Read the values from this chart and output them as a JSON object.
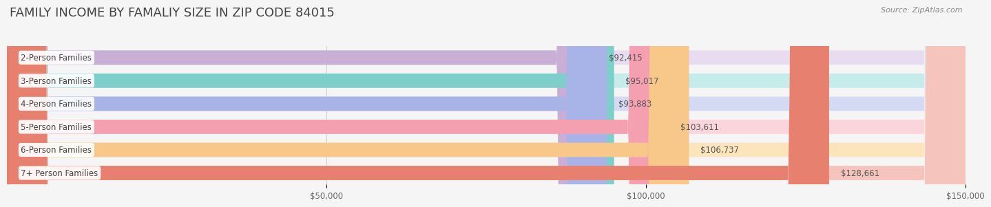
{
  "title": "FAMILY INCOME BY FAMALIY SIZE IN ZIP CODE 84015",
  "source": "Source: ZipAtlas.com",
  "categories": [
    "2-Person Families",
    "3-Person Families",
    "4-Person Families",
    "5-Person Families",
    "6-Person Families",
    "7+ Person Families"
  ],
  "values": [
    92415,
    95017,
    93883,
    103611,
    106737,
    128661
  ],
  "bar_colors": [
    "#c9aed6",
    "#7ecfcb",
    "#a8b4e8",
    "#f4a0b0",
    "#f7c88a",
    "#e88070"
  ],
  "bar_bg_colors": [
    "#e8ddf0",
    "#c5ecea",
    "#d5daf4",
    "#fad5dc",
    "#fce4bc",
    "#f5c4bc"
  ],
  "xlim": [
    0,
    150000
  ],
  "xtick_labels": [
    "$50,000",
    "$100,000",
    "$150,000"
  ],
  "xtick_vals": [
    50000,
    100000,
    150000
  ],
  "value_labels": [
    "$92,415",
    "$95,017",
    "$93,883",
    "$103,611",
    "$106,737",
    "$128,661"
  ],
  "bg_color": "#f5f5f5",
  "bar_height": 0.62,
  "title_fontsize": 13,
  "label_fontsize": 8.5,
  "value_fontsize": 8.5,
  "source_fontsize": 8
}
